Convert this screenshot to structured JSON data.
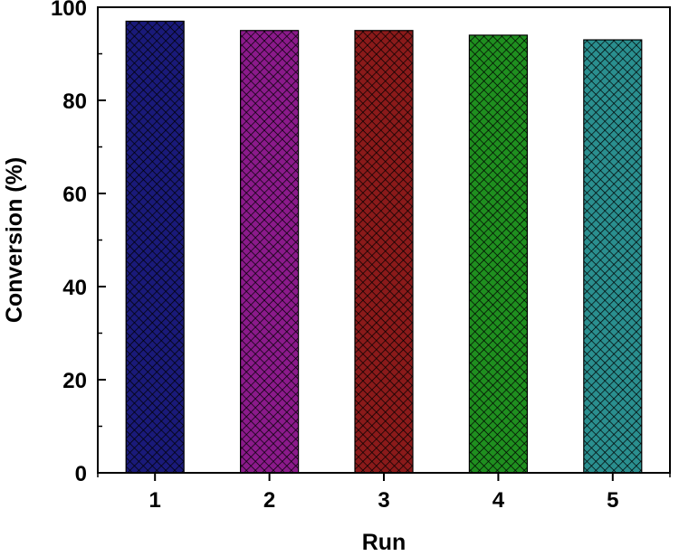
{
  "chart_data": {
    "type": "bar",
    "title": "",
    "xlabel": "Run",
    "ylabel": "Conversion (%)",
    "categories": [
      "1",
      "2",
      "3",
      "4",
      "5"
    ],
    "values": [
      97,
      95,
      95,
      94,
      93
    ],
    "colors": [
      "#1a1a7a",
      "#8b1a8b",
      "#8b1a1a",
      "#1f8f1f",
      "#2a8f8f"
    ],
    "ylim": [
      0,
      100
    ],
    "yticks": [
      0,
      20,
      40,
      60,
      80,
      100
    ],
    "grid": false,
    "legend": "none",
    "fill_pattern": "crosshatch"
  }
}
